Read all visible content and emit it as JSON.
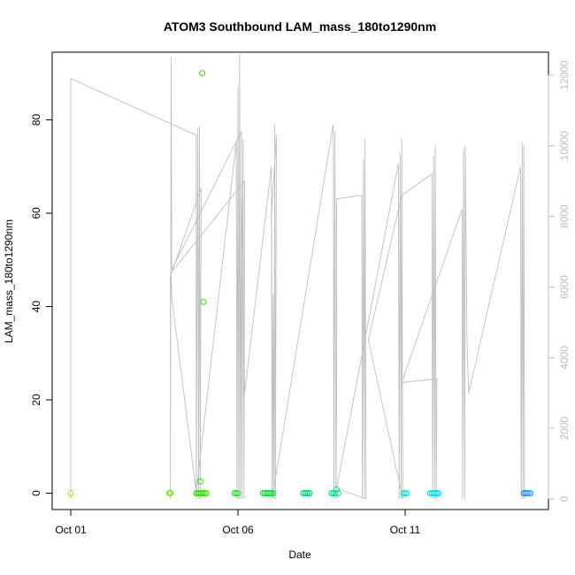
{
  "chart_data": {
    "type": "scatter",
    "title": "ATOM3 Southbound LAM_mass_180to1290nm",
    "xlabel": "Date",
    "ylabel": "LAM_mass_180to1290nm",
    "x_ticks": [
      "Oct 01",
      "Oct 06",
      "Oct 11"
    ],
    "y_ticks": [
      0,
      20,
      40,
      60,
      80
    ],
    "y2_ticks": [
      0,
      2000,
      4000,
      6000,
      8000,
      10000,
      12000
    ],
    "xlim_days": [
      0.0,
      13.86
    ],
    "ylim": [
      -3.5,
      94.5
    ],
    "y2lim": [
      -300,
      12650
    ],
    "grid": false,
    "legend": "none",
    "points": [
      {
        "t": 0.0,
        "v": 0.0,
        "color": "#8cf000"
      },
      {
        "t": 2.95,
        "v": 0.0,
        "color": "#66e800"
      },
      {
        "t": 2.98,
        "v": 0.0,
        "color": "#66e800"
      },
      {
        "t": 3.75,
        "v": 0.0,
        "color": "#33e000"
      },
      {
        "t": 3.8,
        "v": 0.0,
        "color": "#33e000"
      },
      {
        "t": 3.85,
        "v": 0.0,
        "color": "#33e000"
      },
      {
        "t": 3.88,
        "v": 2.5,
        "color": "#33e000"
      },
      {
        "t": 3.9,
        "v": 0.0,
        "color": "#33e000"
      },
      {
        "t": 3.93,
        "v": 90.0,
        "color": "#33e000"
      },
      {
        "t": 3.95,
        "v": 0.0,
        "color": "#33e000"
      },
      {
        "t": 3.97,
        "v": 41.0,
        "color": "#33e000"
      },
      {
        "t": 4.0,
        "v": 0.0,
        "color": "#33e000"
      },
      {
        "t": 4.05,
        "v": 0.0,
        "color": "#33e000"
      },
      {
        "t": 4.9,
        "v": 0.0,
        "color": "#22e022"
      },
      {
        "t": 4.95,
        "v": 0.0,
        "color": "#22e022"
      },
      {
        "t": 5.0,
        "v": 0.0,
        "color": "#22e022"
      },
      {
        "t": 5.75,
        "v": 0.0,
        "color": "#10e040"
      },
      {
        "t": 5.8,
        "v": 0.0,
        "color": "#10e040"
      },
      {
        "t": 5.85,
        "v": 0.0,
        "color": "#10e040"
      },
      {
        "t": 5.9,
        "v": 0.0,
        "color": "#10e040"
      },
      {
        "t": 5.95,
        "v": 0.0,
        "color": "#10e040"
      },
      {
        "t": 6.0,
        "v": 0.0,
        "color": "#10e040"
      },
      {
        "t": 6.05,
        "v": 0.0,
        "color": "#10e040"
      },
      {
        "t": 6.95,
        "v": 0.0,
        "color": "#00e070"
      },
      {
        "t": 7.0,
        "v": 0.0,
        "color": "#00e070"
      },
      {
        "t": 7.05,
        "v": 0.0,
        "color": "#00e070"
      },
      {
        "t": 7.1,
        "v": 0.0,
        "color": "#00e070"
      },
      {
        "t": 7.15,
        "v": 0.0,
        "color": "#00e070"
      },
      {
        "t": 7.8,
        "v": 0.0,
        "color": "#00e090"
      },
      {
        "t": 7.85,
        "v": 0.0,
        "color": "#00e090"
      },
      {
        "t": 7.9,
        "v": 0.0,
        "color": "#00e090"
      },
      {
        "t": 7.95,
        "v": 0.8,
        "color": "#00e090"
      },
      {
        "t": 8.0,
        "v": 0.0,
        "color": "#00e090"
      },
      {
        "t": 9.95,
        "v": 0.0,
        "color": "#00e8d0"
      },
      {
        "t": 10.0,
        "v": 0.0,
        "color": "#00e8d0"
      },
      {
        "t": 10.05,
        "v": 0.0,
        "color": "#00e8d0"
      },
      {
        "t": 10.75,
        "v": 0.0,
        "color": "#00e0f0"
      },
      {
        "t": 10.8,
        "v": 0.0,
        "color": "#00e0f0"
      },
      {
        "t": 10.85,
        "v": 0.0,
        "color": "#00e0f0"
      },
      {
        "t": 10.9,
        "v": 0.0,
        "color": "#00e0f0"
      },
      {
        "t": 10.95,
        "v": 0.0,
        "color": "#00e0f0"
      },
      {
        "t": 11.0,
        "v": 0.0,
        "color": "#00e0f0"
      },
      {
        "t": 13.55,
        "v": 0.0,
        "color": "#1a8cff"
      },
      {
        "t": 13.6,
        "v": 0.0,
        "color": "#1a8cff"
      },
      {
        "t": 13.65,
        "v": 0.0,
        "color": "#1a8cff"
      },
      {
        "t": 13.7,
        "v": 0.0,
        "color": "#2ea0ff"
      },
      {
        "t": 13.75,
        "v": 0.0,
        "color": "#2ea0ff"
      }
    ],
    "secondary_line": {
      "color": "#bfbfbf",
      "points": [
        [
          0.0,
          0
        ],
        [
          0.0,
          11900
        ],
        [
          3.75,
          10300
        ],
        [
          3.75,
          0
        ],
        [
          3.8,
          10500
        ],
        [
          3.82,
          0
        ],
        [
          3.85,
          10550
        ],
        [
          3.87,
          0
        ],
        [
          3.9,
          8800
        ],
        [
          2.98,
          6300
        ],
        [
          2.98,
          0
        ],
        [
          3.0,
          12500
        ],
        [
          3.02,
          6500
        ],
        [
          5.1,
          10400
        ],
        [
          5.12,
          0
        ],
        [
          5.15,
          10200
        ],
        [
          5.18,
          0
        ],
        [
          5.2,
          9000
        ],
        [
          3.0,
          6400
        ],
        [
          3.02,
          5700
        ],
        [
          3.75,
          200
        ],
        [
          4.95,
          10100
        ],
        [
          4.97,
          0
        ],
        [
          5.0,
          11700
        ],
        [
          5.02,
          0
        ],
        [
          5.05,
          12600
        ],
        [
          5.07,
          0
        ],
        [
          5.1,
          9200
        ],
        [
          5.2,
          3000
        ],
        [
          6.0,
          9400
        ],
        [
          6.03,
          0
        ],
        [
          6.05,
          5800
        ],
        [
          6.08,
          0
        ],
        [
          6.1,
          10600
        ],
        [
          6.12,
          0
        ],
        [
          6.15,
          10300
        ],
        [
          6.0,
          8000
        ],
        [
          6.02,
          0
        ],
        [
          7.85,
          10600
        ],
        [
          7.87,
          0
        ],
        [
          7.9,
          10400
        ],
        [
          7.93,
          0
        ],
        [
          7.95,
          3000
        ],
        [
          7.95,
          8500
        ],
        [
          8.7,
          8600
        ],
        [
          8.72,
          0
        ],
        [
          8.75,
          9600
        ],
        [
          8.78,
          0
        ],
        [
          8.8,
          10200
        ],
        [
          8.83,
          0
        ],
        [
          7.95,
          300
        ],
        [
          9.8,
          9500
        ],
        [
          9.82,
          0
        ],
        [
          9.85,
          9800
        ],
        [
          9.88,
          0
        ],
        [
          9.9,
          10200
        ],
        [
          9.93,
          0
        ],
        [
          8.9,
          4500
        ],
        [
          9.9,
          8600
        ],
        [
          10.8,
          9200
        ],
        [
          10.82,
          0
        ],
        [
          10.85,
          9700
        ],
        [
          10.88,
          0
        ],
        [
          10.9,
          10000
        ],
        [
          10.93,
          0
        ],
        [
          10.95,
          3400
        ],
        [
          9.9,
          3300
        ],
        [
          11.7,
          8200
        ],
        [
          11.72,
          0
        ],
        [
          11.75,
          9900
        ],
        [
          11.78,
          0
        ],
        [
          11.8,
          10000
        ],
        [
          11.85,
          4500
        ],
        [
          11.9,
          3000
        ],
        [
          13.45,
          9400
        ],
        [
          13.47,
          0
        ],
        [
          13.5,
          10100
        ],
        [
          13.52,
          0
        ],
        [
          13.55,
          10000
        ],
        [
          13.57,
          0
        ]
      ]
    }
  }
}
